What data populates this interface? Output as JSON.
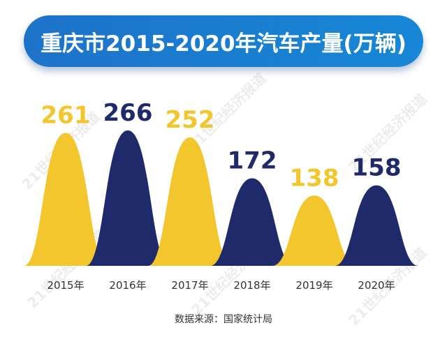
{
  "title": "重庆市2015-2020年汽车产量(万辆)",
  "source": "数据来源：国家统计局",
  "watermark_text": "21世纪经济报道",
  "colors": {
    "yellow": "#f2c62c",
    "navy": "#1f2a6b",
    "banner": "#1a7dd0"
  },
  "chart_data": {
    "type": "bar",
    "title": "重庆市2015-2020年汽车产量(万辆)",
    "categories": [
      "2015年",
      "2016年",
      "2017年",
      "2018年",
      "2019年",
      "2020年"
    ],
    "values": [
      261,
      266,
      252,
      172,
      138,
      158
    ],
    "value_labels": [
      "261",
      "266",
      "252",
      "172",
      "138",
      "158"
    ],
    "bar_colors": [
      "#f2c62c",
      "#1f2a6b",
      "#f2c62c",
      "#1f2a6b",
      "#f2c62c",
      "#1f2a6b"
    ],
    "xlabel": "",
    "ylabel": "万辆",
    "ylim": [
      0,
      300
    ],
    "grid": false
  }
}
